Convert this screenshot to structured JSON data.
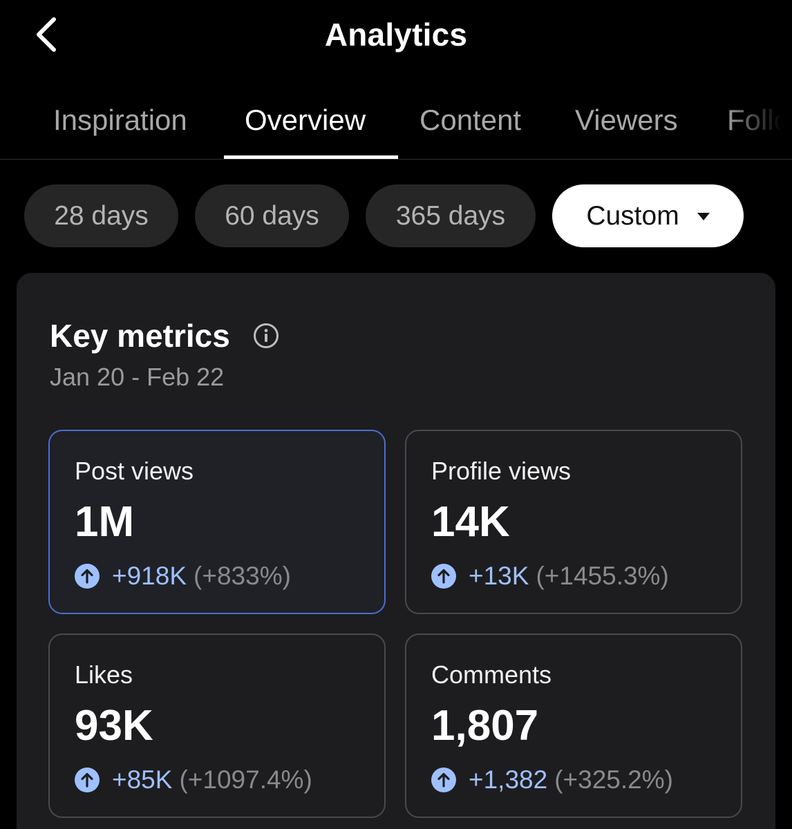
{
  "header": {
    "title": "Analytics"
  },
  "tabs": [
    {
      "label": "Inspiration",
      "active": false
    },
    {
      "label": "Overview",
      "active": true
    },
    {
      "label": "Content",
      "active": false
    },
    {
      "label": "Viewers",
      "active": false
    },
    {
      "label": "Follo",
      "active": false
    }
  ],
  "periods": [
    {
      "label": "28 days",
      "selected": false
    },
    {
      "label": "60 days",
      "selected": false
    },
    {
      "label": "365 days",
      "selected": false
    },
    {
      "label": "Custom",
      "selected": true
    }
  ],
  "key_metrics": {
    "title": "Key metrics",
    "date_range": "Jan 20 - Feb 22",
    "metrics": [
      {
        "label": "Post views",
        "value": "1M",
        "delta": "+918K",
        "pct": "(+833%)",
        "trend": "up"
      },
      {
        "label": "Profile views",
        "value": "14K",
        "delta": "+13K",
        "pct": "(+1455.3%)",
        "trend": "up"
      },
      {
        "label": "Likes",
        "value": "93K",
        "delta": "+85K",
        "pct": "(+1097.4%)",
        "trend": "up"
      },
      {
        "label": "Comments",
        "value": "1,807",
        "delta": "+1,382",
        "pct": "(+325.2%)",
        "trend": "up"
      }
    ]
  },
  "colors": {
    "background": "#000000",
    "card": "#1d1d1f",
    "accent": "#9fc0ff",
    "active_border": "#4a6fd0"
  },
  "icons": {
    "back": "chevron-left-icon",
    "info": "info-icon",
    "trend_up": "arrow-up-circle-icon",
    "dropdown": "caret-down-icon"
  }
}
